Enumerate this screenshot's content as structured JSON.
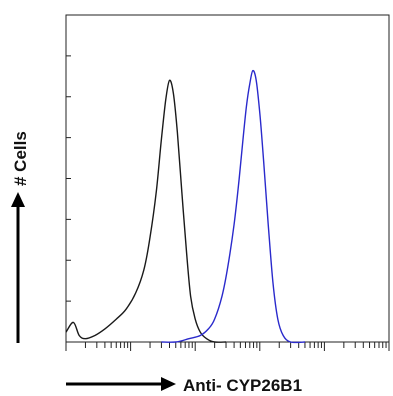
{
  "chart_data": {
    "type": "line",
    "title": "",
    "xlabel": "Anti- CYP26B1",
    "ylabel": "# Cells",
    "x_scale": "log",
    "xlim": [
      0.1,
      10000
    ],
    "ylim": [
      0,
      100
    ],
    "grid": false,
    "legend": "none",
    "series": [
      {
        "color": "#1a1a1a",
        "x": [
          0.1,
          0.13,
          0.16,
          0.2,
          0.28,
          0.4,
          0.6,
          0.85,
          1.2,
          1.6,
          2.0,
          2.5,
          3.0,
          3.5,
          4.0,
          4.6,
          5.3,
          6.2,
          7.3,
          8.5,
          10,
          12,
          15,
          20,
          30
        ],
        "y": [
          3,
          6,
          2,
          1,
          2,
          4,
          7,
          10,
          15,
          22,
          32,
          46,
          62,
          74,
          80,
          76,
          64,
          46,
          28,
          14,
          7,
          3,
          1,
          0,
          0
        ]
      },
      {
        "color": "#2a2acc",
        "x": [
          3,
          5,
          8,
          12,
          16,
          20,
          26,
          32,
          40,
          48,
          55,
          62,
          70,
          78,
          88,
          100,
          115,
          135,
          160,
          190,
          230,
          300,
          500
        ],
        "y": [
          0,
          0,
          1,
          2,
          4,
          7,
          14,
          23,
          36,
          50,
          62,
          72,
          79,
          83,
          80,
          70,
          55,
          36,
          18,
          7,
          2,
          0,
          0
        ]
      }
    ]
  }
}
